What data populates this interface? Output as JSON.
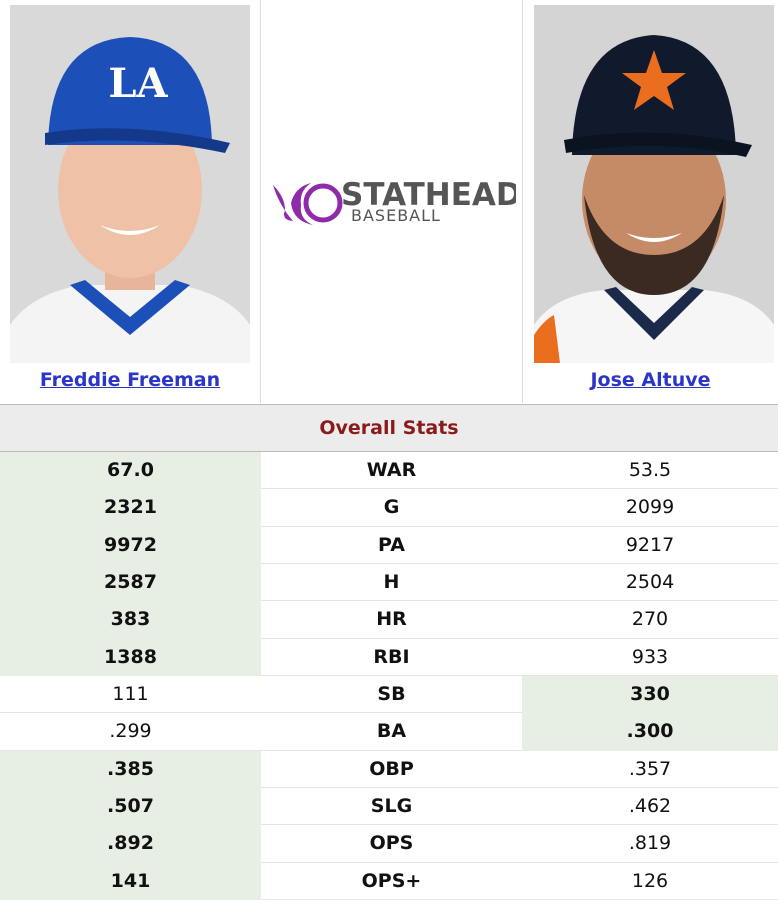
{
  "players": {
    "left": {
      "name": "Freddie Freeman"
    },
    "right": {
      "name": "Jose Altuve"
    }
  },
  "logo": {
    "title": "STATHEAD",
    "subtitle": "BASEBALL"
  },
  "table": {
    "title": "Overall Stats",
    "rows": [
      {
        "left": "67.0",
        "stat": "WAR",
        "right": "53.5",
        "highlight": "left"
      },
      {
        "left": "2321",
        "stat": "G",
        "right": "2099",
        "highlight": "left"
      },
      {
        "left": "9972",
        "stat": "PA",
        "right": "9217",
        "highlight": "left"
      },
      {
        "left": "2587",
        "stat": "H",
        "right": "2504",
        "highlight": "left"
      },
      {
        "left": "383",
        "stat": "HR",
        "right": "270",
        "highlight": "left"
      },
      {
        "left": "1388",
        "stat": "RBI",
        "right": "933",
        "highlight": "left"
      },
      {
        "left": "111",
        "stat": "SB",
        "right": "330",
        "highlight": "right"
      },
      {
        "left": ".299",
        "stat": "BA",
        "right": ".300",
        "highlight": "right"
      },
      {
        "left": ".385",
        "stat": "OBP",
        "right": ".357",
        "highlight": "left"
      },
      {
        "left": ".507",
        "stat": "SLG",
        "right": ".462",
        "highlight": "left"
      },
      {
        "left": ".892",
        "stat": "OPS",
        "right": ".819",
        "highlight": "left"
      },
      {
        "left": "141",
        "stat": "OPS+",
        "right": "126",
        "highlight": "left"
      }
    ]
  }
}
